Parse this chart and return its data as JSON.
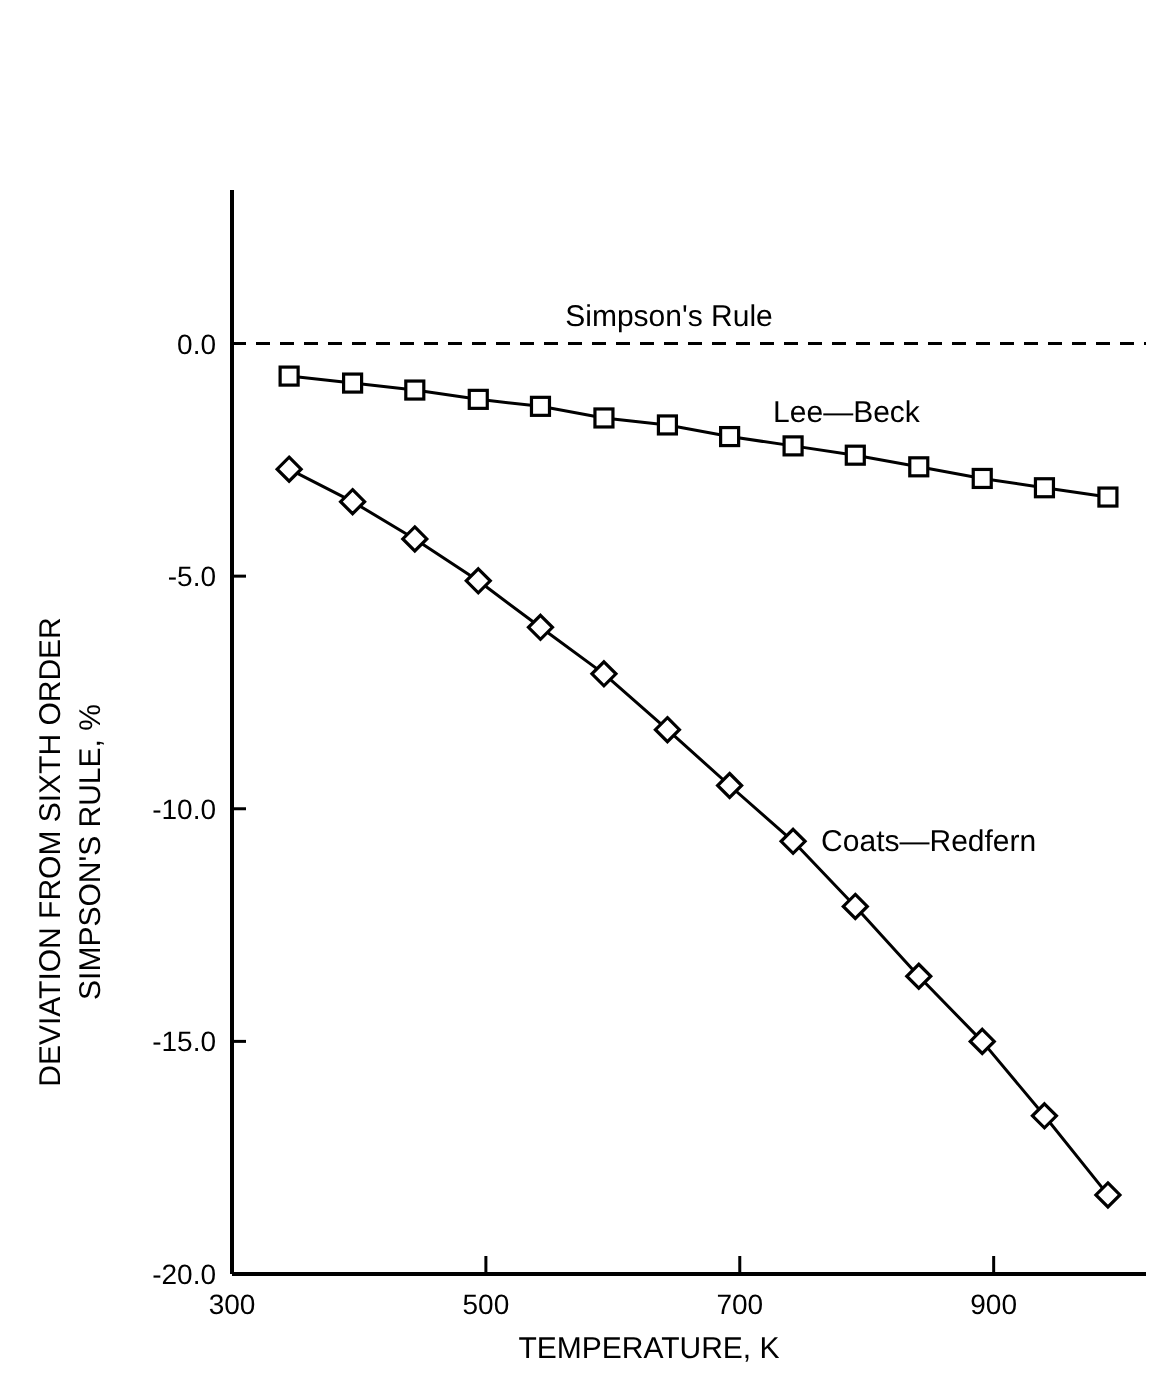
{
  "chart_data": {
    "type": "line",
    "xlabel": "TEMPERATURE, K",
    "ylabel": "DEVIATION FROM SIXTH ORDER\nSIMPSON'S RULE, %",
    "xlim": [
      300,
      1020
    ],
    "ylim": [
      -20,
      3.3
    ],
    "xticks": [
      300,
      500,
      700,
      900
    ],
    "yticks": [
      {
        "value": 0,
        "label": "0.0"
      },
      {
        "value": -5,
        "label": "-5.0"
      },
      {
        "value": -10,
        "label": "-10.0"
      },
      {
        "value": -15,
        "label": "-15.0"
      },
      {
        "value": -20,
        "label": "-20.0"
      }
    ],
    "grid": false,
    "line_style": "solid",
    "x": [
      345,
      395,
      444,
      494,
      543,
      593,
      643,
      692,
      742,
      791,
      841,
      891,
      940,
      990
    ],
    "series": [
      {
        "name": "Lee—Beck",
        "color": "#000000",
        "marker": "square",
        "values": [
          -0.7,
          -0.85,
          -1.0,
          -1.2,
          -1.35,
          -1.6,
          -1.75,
          -2.0,
          -2.2,
          -2.4,
          -2.65,
          -2.9,
          -3.1,
          -3.3
        ]
      },
      {
        "name": "Coats—Redfern",
        "color": "#000000",
        "marker": "diamond",
        "values": [
          -2.7,
          -3.4,
          -4.2,
          -5.1,
          -6.1,
          -7.1,
          -8.3,
          -9.5,
          -10.7,
          -12.1,
          -13.6,
          -15.0,
          -16.6,
          -18.3
        ]
      }
    ],
    "ref_lines": [
      {
        "axis": "y",
        "value": 0,
        "label": "Simpson's Rule",
        "line_style": "dashed",
        "color": "#000000"
      }
    ]
  }
}
